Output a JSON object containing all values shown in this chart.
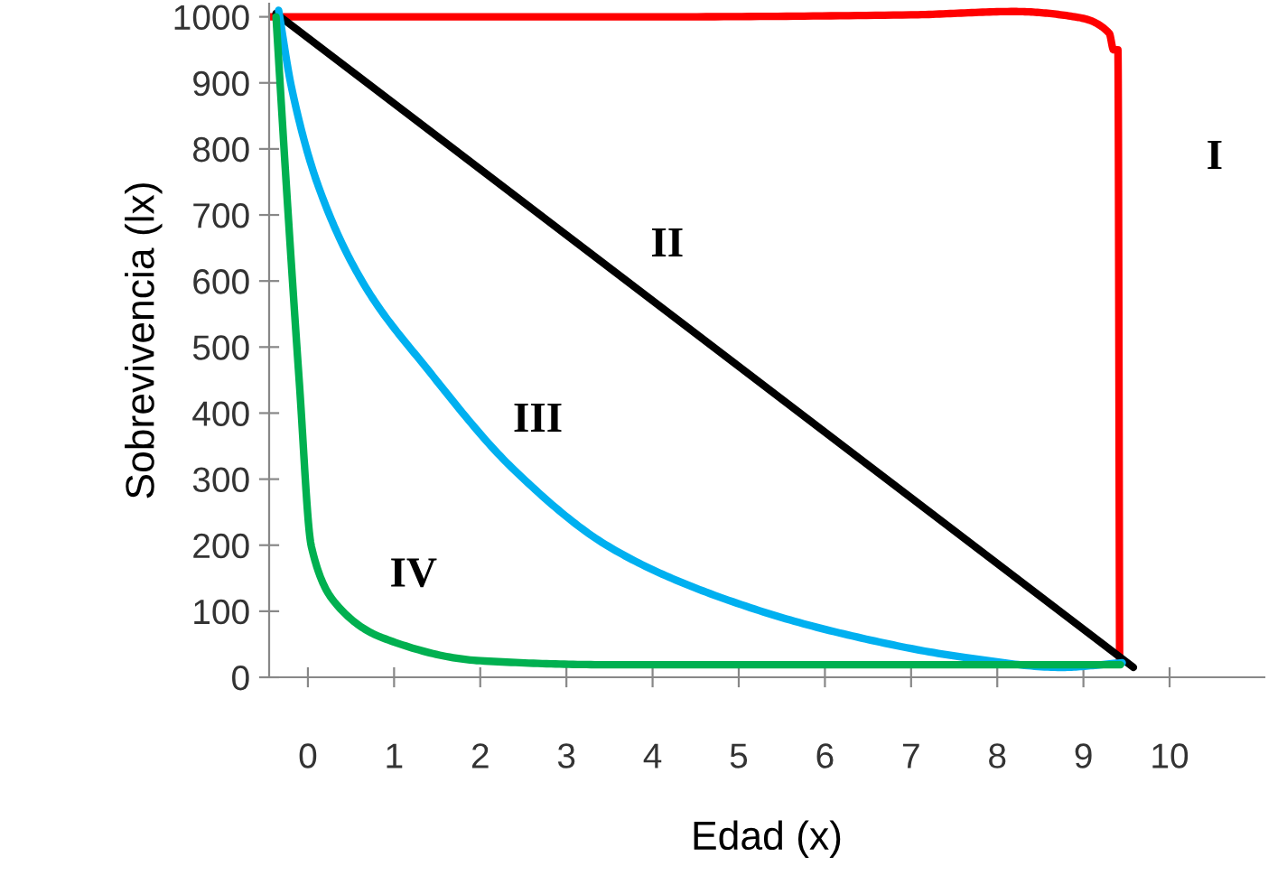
{
  "chart_data": {
    "type": "line",
    "xlabel": "Edad (x)",
    "ylabel": "Sobrevivencia (lx)",
    "xlim": [
      -0.45,
      11.1
    ],
    "xticks": [
      0,
      1,
      2,
      3,
      4,
      5,
      6,
      7,
      8,
      9,
      10
    ],
    "ylim": [
      0,
      1020
    ],
    "yticks": [
      0,
      100,
      200,
      300,
      400,
      500,
      600,
      700,
      800,
      900,
      1000
    ],
    "grid": false,
    "legend": false,
    "marker": "none",
    "line_style": "solid",
    "series": [
      {
        "name": "I",
        "color": "#ff0000",
        "x": [
          -0.44,
          4,
          7,
          8.2,
          8.9,
          9.3,
          9.35,
          9.4,
          9.42
        ],
        "values": [
          1000,
          1000,
          1003,
          1008,
          1000,
          975,
          950,
          950,
          20
        ]
      },
      {
        "name": "II",
        "color": "#000000",
        "x": [
          -0.37,
          9.58
        ],
        "values": [
          1005,
          15
        ]
      },
      {
        "name": "III",
        "color": "#00b0f0",
        "x": [
          -0.34,
          -0.19,
          0.12,
          0.65,
          1.39,
          2.37,
          3.49,
          4.62,
          6.11,
          7.63,
          8.74,
          9.45
        ],
        "values": [
          1010,
          893,
          744,
          595,
          466,
          317,
          198,
          129,
          69,
          30,
          15,
          22
        ]
      },
      {
        "name": "IV",
        "color": "#00b050",
        "x": [
          -0.37,
          -0.25,
          -0.1,
          0.04,
          0.34,
          0.86,
          2.0,
          3.49,
          9.43
        ],
        "values": [
          1000,
          744,
          447,
          198,
          109,
          60,
          25,
          19,
          19
        ]
      }
    ]
  }
}
